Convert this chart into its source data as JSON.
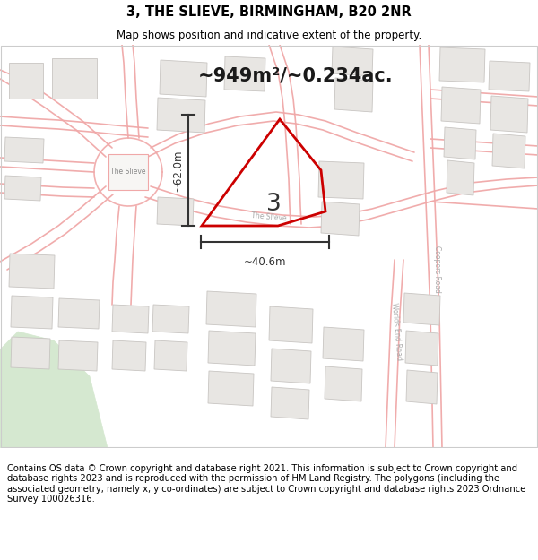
{
  "title": "3, THE SLIEVE, BIRMINGHAM, B20 2NR",
  "subtitle": "Map shows position and indicative extent of the property.",
  "area_label": "~949m²/~0.234ac.",
  "width_label": "~40.6m",
  "height_label": "~62.0m",
  "property_number": "3",
  "footer": "Contains OS data © Crown copyright and database right 2021. This information is subject to Crown copyright and database rights 2023 and is reproduced with the permission of HM Land Registry. The polygons (including the associated geometry, namely x, y co-ordinates) are subject to Crown copyright and database rights 2023 Ordnance Survey 100026316.",
  "bg_color": "#ffffff",
  "map_bg": "#f7f6f4",
  "road_color": "#f0a8a8",
  "road_lw": 1.2,
  "building_fc": "#e8e6e3",
  "building_ec": "#c8c5c2",
  "building_lw": 0.6,
  "property_outline_color": "#cc0000",
  "property_lw": 2.0,
  "dim_line_color": "#333333",
  "green_color": "#d5e8d0",
  "title_fontsize": 10.5,
  "subtitle_fontsize": 8.5,
  "footer_fontsize": 7.2,
  "area_fontsize": 15,
  "label_color": "#b0b0b0",
  "road_label_color": "#aaaaaa"
}
